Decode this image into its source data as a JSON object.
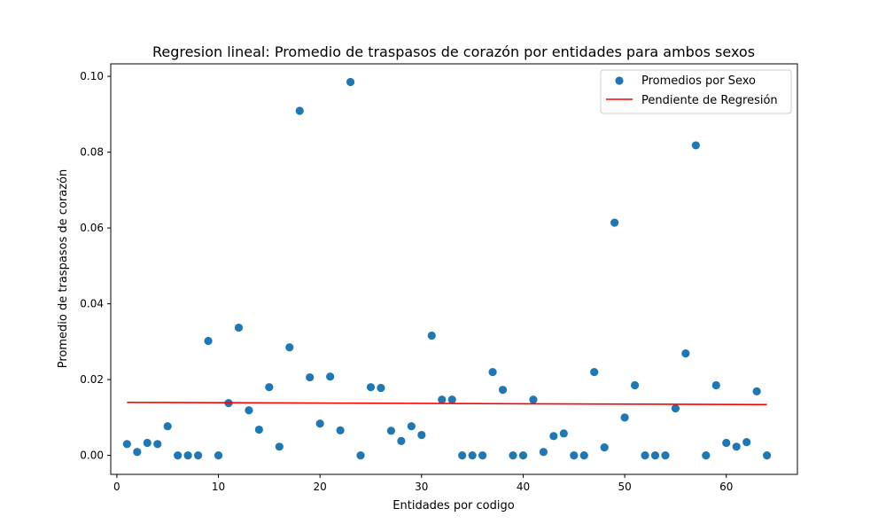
{
  "chart_data": {
    "type": "scatter",
    "title": "Regresion lineal: Promedio de traspasos de corazón por entidades para ambos sexos",
    "xlabel": "Entidades por codigo",
    "ylabel": "Promedio de traspasos de corazón",
    "xlim": [
      -0.6,
      67.0
    ],
    "ylim": [
      -0.005,
      0.1033
    ],
    "x_ticks": [
      0,
      10,
      20,
      30,
      40,
      50,
      60
    ],
    "y_ticks": [
      0.0,
      0.02,
      0.04,
      0.06,
      0.08,
      0.1
    ],
    "y_tick_labels": [
      "0.00",
      "0.02",
      "0.04",
      "0.06",
      "0.08",
      "0.10"
    ],
    "grid": false,
    "legend_position": "top-right",
    "series": [
      {
        "name": "Promedios por Sexo",
        "kind": "scatter",
        "color": "#1f77b4",
        "x": [
          1,
          2,
          3,
          4,
          5,
          6,
          7,
          8,
          9,
          10,
          11,
          12,
          13,
          14,
          15,
          16,
          17,
          18,
          19,
          20,
          21,
          22,
          23,
          24,
          25,
          26,
          27,
          28,
          29,
          30,
          31,
          32,
          33,
          34,
          35,
          36,
          37,
          38,
          39,
          40,
          41,
          42,
          43,
          44,
          45,
          46,
          47,
          48,
          49,
          50,
          51,
          52,
          53,
          54,
          55,
          56,
          57,
          58,
          59,
          60,
          61,
          62,
          63,
          64
        ],
        "y": [
          0.003,
          0.0009,
          0.0033,
          0.003,
          0.0077,
          0.0,
          0.0,
          0.0,
          0.0302,
          0.0,
          0.0138,
          0.0337,
          0.0119,
          0.0068,
          0.018,
          0.0023,
          0.0285,
          0.0909,
          0.0206,
          0.0084,
          0.0208,
          0.0066,
          0.0985,
          0.0,
          0.018,
          0.0178,
          0.0065,
          0.0038,
          0.0077,
          0.0054,
          0.0316,
          0.0147,
          0.0147,
          0.0,
          0.0,
          0.0,
          0.022,
          0.0173,
          0.0,
          0.0,
          0.0147,
          0.0009,
          0.0051,
          0.0058,
          0.0,
          0.0,
          0.022,
          0.0021,
          0.0614,
          0.01,
          0.0185,
          0.0,
          0.0,
          0.0,
          0.0124,
          0.0269,
          0.0818,
          0.0,
          0.0185,
          0.0033,
          0.0023,
          0.0035,
          0.0169,
          0.0
        ]
      },
      {
        "name": "Pendiente de Regresión",
        "kind": "line",
        "color": "#ff0000",
        "x": [
          1,
          64
        ],
        "y": [
          0.014,
          0.0134
        ]
      }
    ]
  }
}
